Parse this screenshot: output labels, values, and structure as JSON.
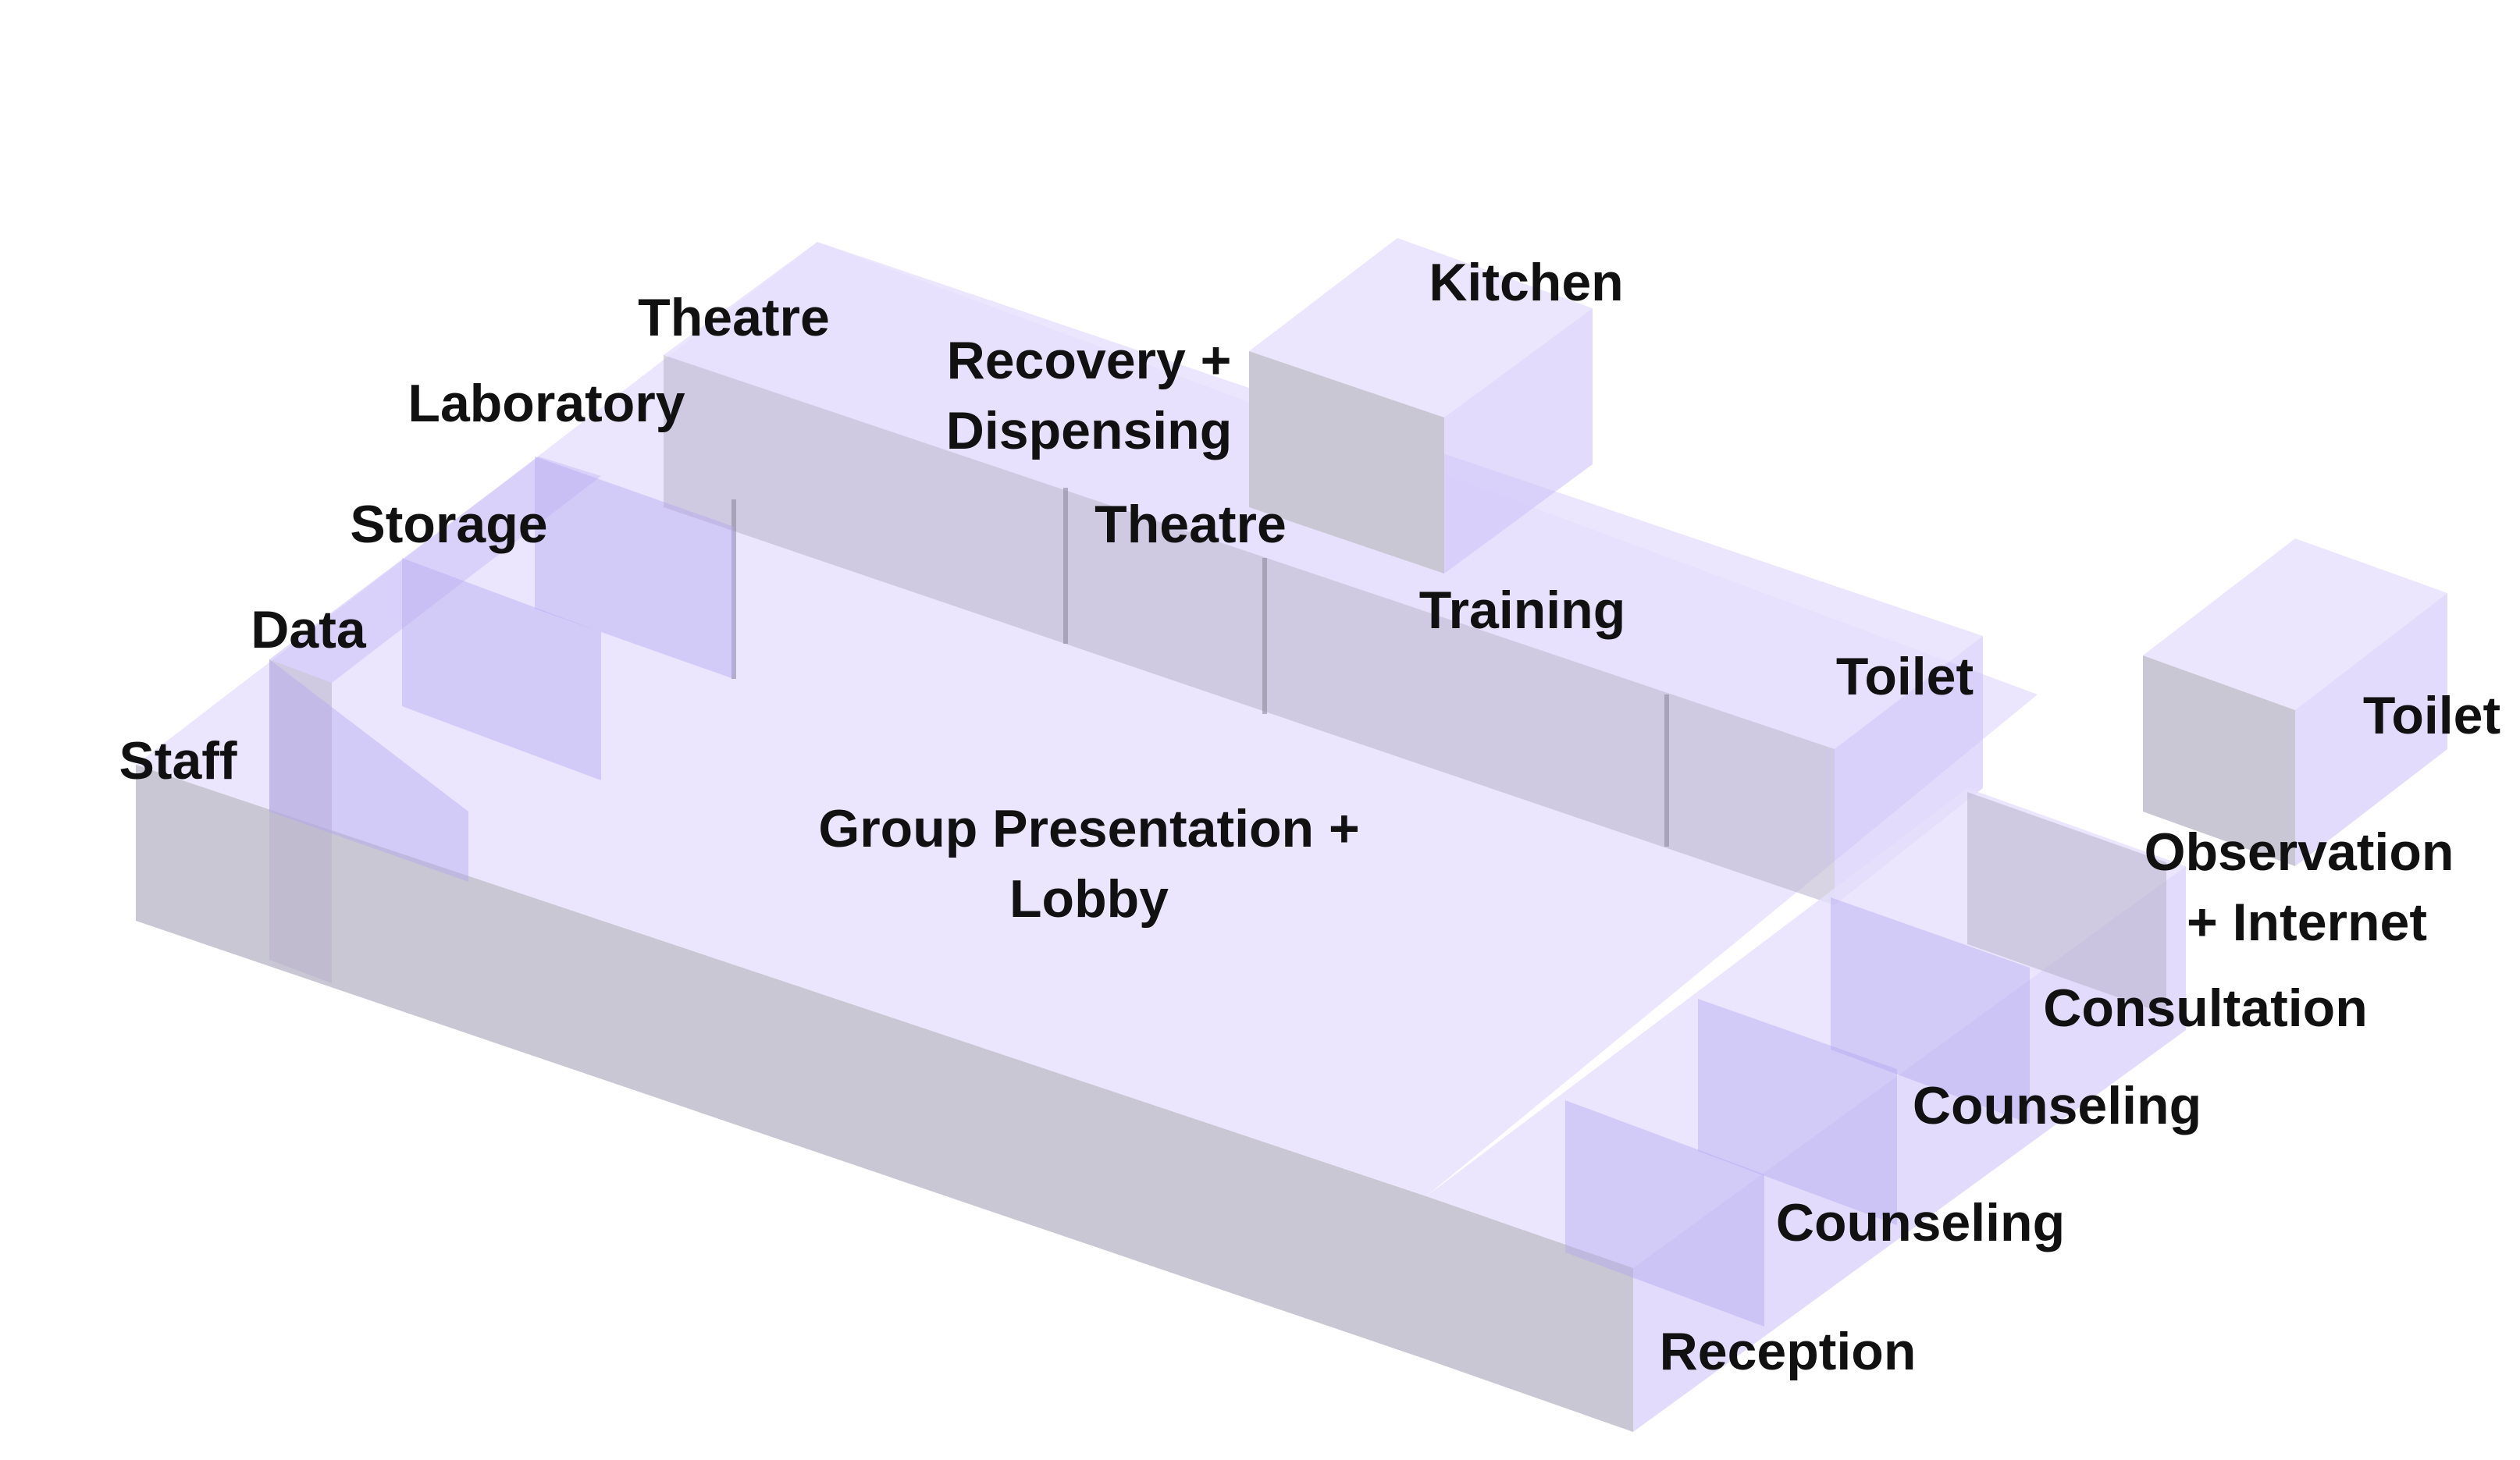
{
  "labels": {
    "theatre_top": "Theatre",
    "recovery_line1": "Recovery +",
    "recovery_line2": "Dispensing",
    "kitchen": "Kitchen",
    "laboratory": "Laboratory",
    "storage": "Storage",
    "theatre_mid": "Theatre",
    "training": "Training",
    "data": "Data",
    "staff": "Staff",
    "toilet_mid": "Toilet",
    "toilet_right": "Toilet",
    "group_line1": "Group Presentation +",
    "group_line2": "Lobby",
    "observation_line1": "Observation",
    "observation_line2": "+ Internet",
    "consultation": "Consultation",
    "counseling_upper": "Counseling",
    "counseling_lower": "Counseling",
    "reception": "Reception"
  }
}
